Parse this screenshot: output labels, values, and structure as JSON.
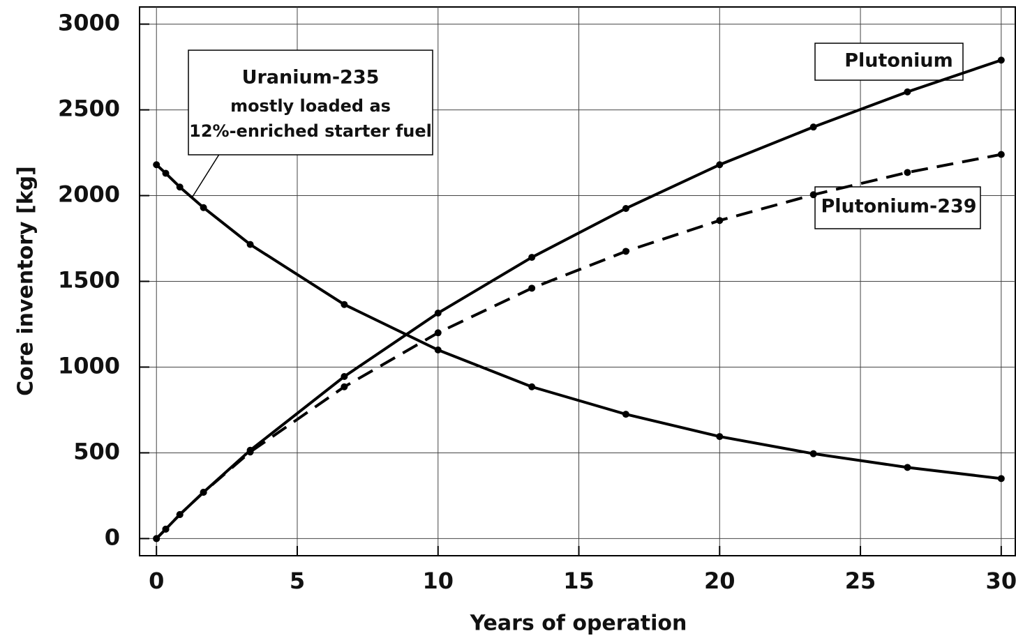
{
  "chart_data": {
    "type": "line",
    "x_label": "Years of operation",
    "y_label": "Core inventory [kg]",
    "x": [
      0,
      0.33,
      0.83,
      1.67,
      3.33,
      6.67,
      10,
      13.33,
      16.67,
      20,
      23.33,
      26.67,
      30
    ],
    "series": [
      {
        "name": "Uranium-235",
        "color": "#000000",
        "dash": false,
        "values": [
          2180,
          2130,
          2050,
          1930,
          1715,
          1365,
          1100,
          885,
          725,
          595,
          495,
          415,
          350
        ]
      },
      {
        "name": "Plutonium",
        "color": "#000000",
        "dash": false,
        "values": [
          0,
          55,
          140,
          270,
          515,
          945,
          1315,
          1640,
          1925,
          2180,
          2400,
          2605,
          2790
        ]
      },
      {
        "name": "Plutonium-239",
        "color": "#000000",
        "dash": true,
        "values": [
          0,
          55,
          140,
          270,
          505,
          885,
          1200,
          1460,
          1675,
          1855,
          2005,
          2135,
          2240
        ]
      }
    ],
    "annotations": [
      "Uranium-235",
      "mostly loaded as",
      "12%-enriched starter fuel"
    ],
    "xlim": [
      -0.6,
      30.5
    ],
    "ylim": [
      -100,
      3100
    ],
    "xticks": [
      0,
      5,
      10,
      15,
      20,
      25,
      30
    ],
    "yticks": [
      0,
      500,
      1000,
      1500,
      2000,
      2500,
      3000
    ],
    "grid": true
  }
}
